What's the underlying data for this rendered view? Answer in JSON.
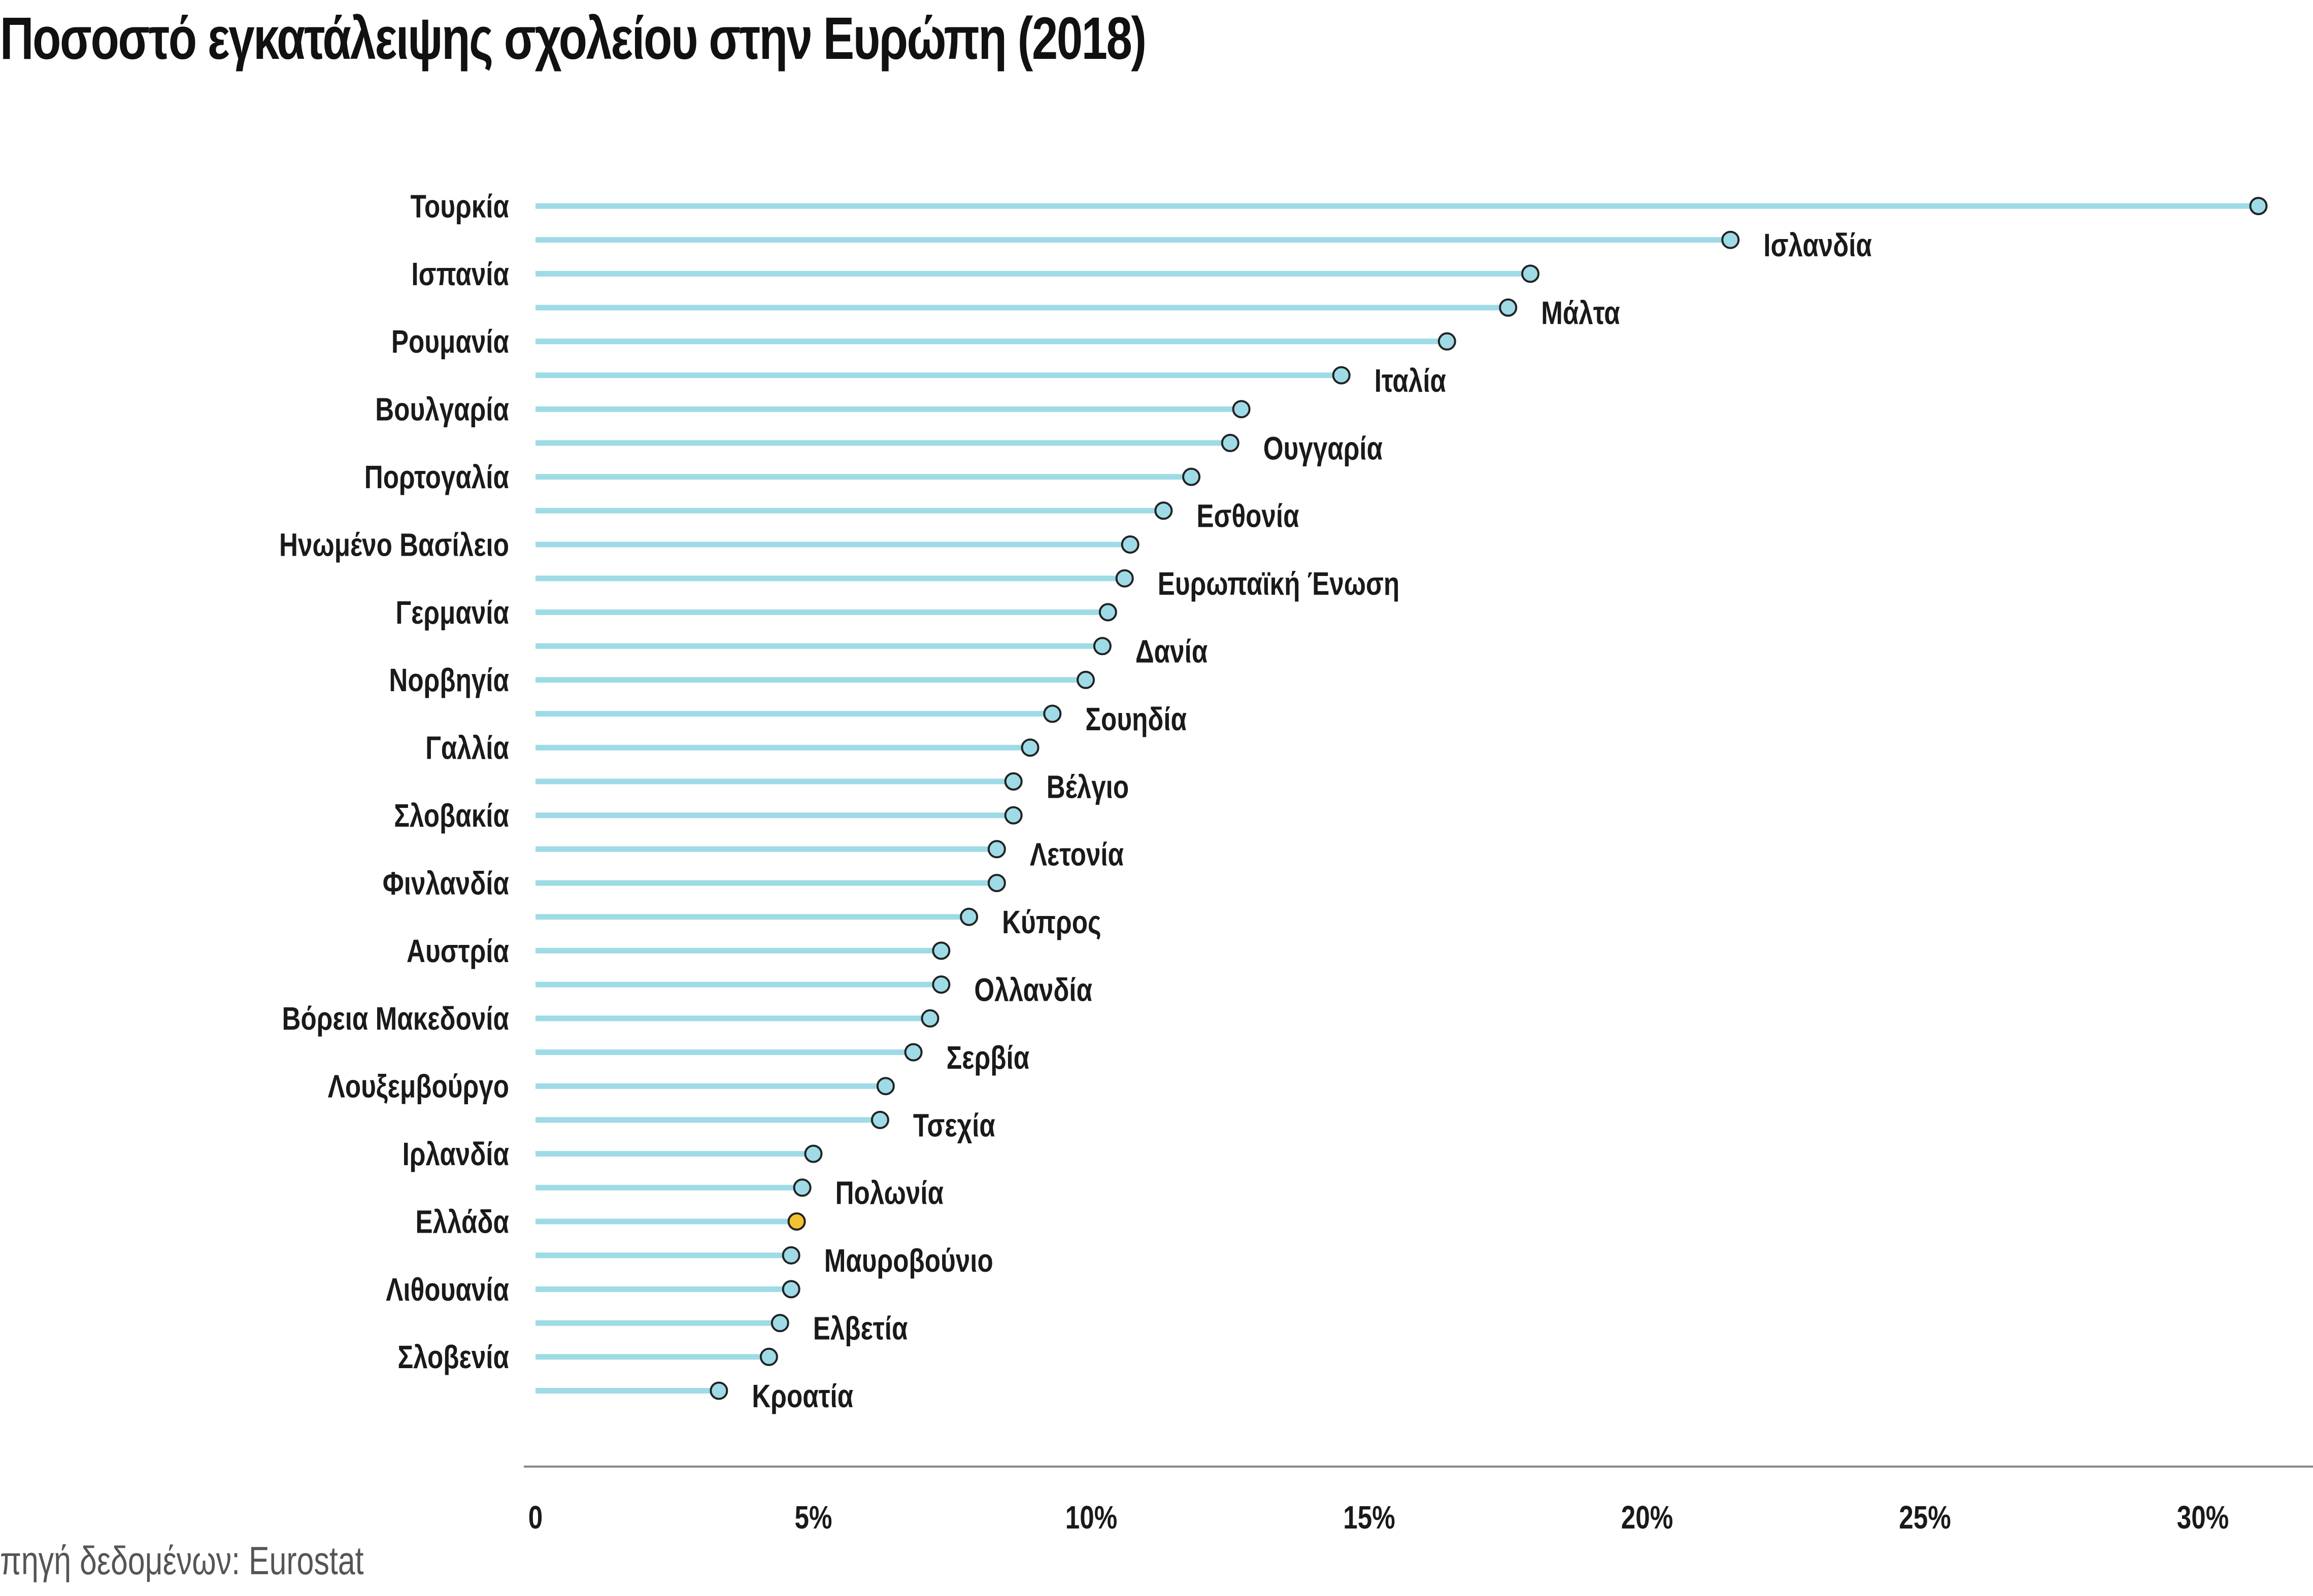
{
  "chart_data": {
    "type": "lollipop",
    "title": "Ποσοστό εγκατάλειψης σχολείου στην Ευρώπη (2018)",
    "source": "πηγή δεδομένων: Eurostat",
    "xlabel": "",
    "ylabel": "",
    "xlim": [
      0,
      31
    ],
    "x_ticks": [
      0,
      5,
      10,
      15,
      20,
      25,
      30
    ],
    "x_tick_labels": [
      "0",
      "5%",
      "10%",
      "15%",
      "20%",
      "25%",
      "30%"
    ],
    "categories": [
      "Τουρκία",
      "Ισλανδία",
      "Ισπανία",
      "Μάλτα",
      "Ρουμανία",
      "Ιταλία",
      "Βουλγαρία",
      "Ουγγαρία",
      "Πορτογαλία",
      "Εσθονία",
      "Ηνωμένο Βασίλειο",
      "Ευρωπαϊκή Ένωση",
      "Γερμανία",
      "Δανία",
      "Νορβηγία",
      "Σουηδία",
      "Γαλλία",
      "Βέλγιο",
      "Σλοβακία",
      "Λετονία",
      "Φινλανδία",
      "Κύπρος",
      "Αυστρία",
      "Ολλανδία",
      "Βόρεια Μακεδονία",
      "Σερβία",
      "Λουξεμβούργο",
      "Τσεχία",
      "Ιρλανδία",
      "Πολωνία",
      "Ελλάδα",
      "Μαυροβούνιο",
      "Λιθουανία",
      "Ελβετία",
      "Σλοβενία",
      "Κροατία"
    ],
    "values": [
      31.0,
      21.5,
      17.9,
      17.5,
      16.4,
      14.5,
      12.7,
      12.5,
      11.8,
      11.3,
      10.7,
      10.6,
      10.3,
      10.2,
      9.9,
      9.3,
      8.9,
      8.6,
      8.6,
      8.3,
      8.3,
      7.8,
      7.3,
      7.3,
      7.1,
      6.8,
      6.3,
      6.2,
      5.0,
      4.8,
      4.7,
      4.6,
      4.6,
      4.4,
      4.2,
      3.3
    ],
    "label_side": [
      "left",
      "right",
      "left",
      "right",
      "left",
      "right",
      "left",
      "right",
      "left",
      "right",
      "left",
      "right",
      "left",
      "right",
      "left",
      "right",
      "left",
      "right",
      "left",
      "right",
      "left",
      "right",
      "left",
      "right",
      "left",
      "right",
      "left",
      "right",
      "left",
      "right",
      "left",
      "right",
      "left",
      "right",
      "left",
      "right"
    ],
    "highlight": "Ελλάδα",
    "colors": {
      "stem": "#9edbe6",
      "dot": "#9edbe6",
      "dot_highlight": "#f2c230",
      "dot_stroke": "#222222",
      "axis": "#888888",
      "text": "#1a1a1a"
    }
  }
}
